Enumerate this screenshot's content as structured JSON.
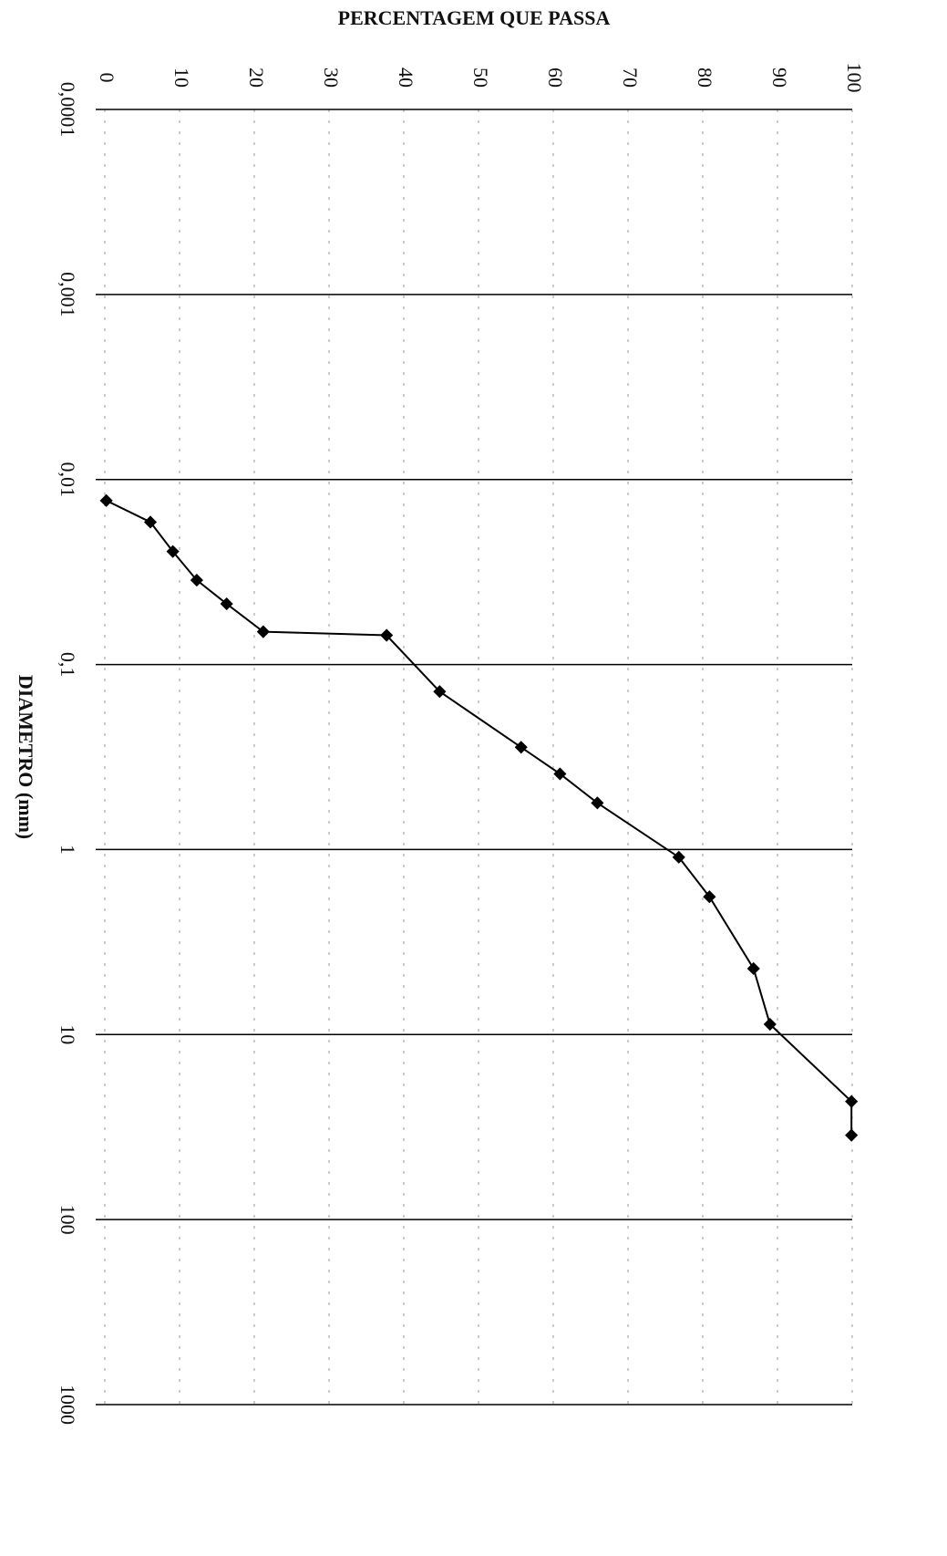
{
  "chart_data": {
    "type": "line",
    "title": "PERCENTAGEM QUE PASSA",
    "x_label": "DIAMETRO (mm)",
    "x_scale": "log",
    "x": [
      0.013,
      0.017,
      0.0245,
      0.035,
      0.047,
      0.0665,
      0.0695,
      0.14,
      0.28,
      0.39,
      0.56,
      1.1,
      1.8,
      4.4,
      8.8,
      23,
      35
    ],
    "values": [
      0.2,
      6.1,
      9.1,
      12.3,
      16.3,
      21.2,
      37.7,
      44.8,
      55.7,
      60.9,
      65.9,
      76.8,
      80.9,
      86.8,
      89.0,
      99.9,
      99.9
    ],
    "color": "#000000",
    "xlim": [
      0.0001,
      1000
    ],
    "xticks": [
      {
        "value": 0.0001,
        "label": "0,0001"
      },
      {
        "value": 0.001,
        "label": "0,001"
      },
      {
        "value": 0.01,
        "label": "0,01"
      },
      {
        "value": 0.1,
        "label": "0,1"
      },
      1,
      10,
      100,
      1000
    ],
    "ylim": [
      0,
      100
    ],
    "yticks": [
      0,
      10,
      20,
      30,
      40,
      50,
      60,
      70,
      80,
      90,
      100
    ],
    "grid": true
  }
}
